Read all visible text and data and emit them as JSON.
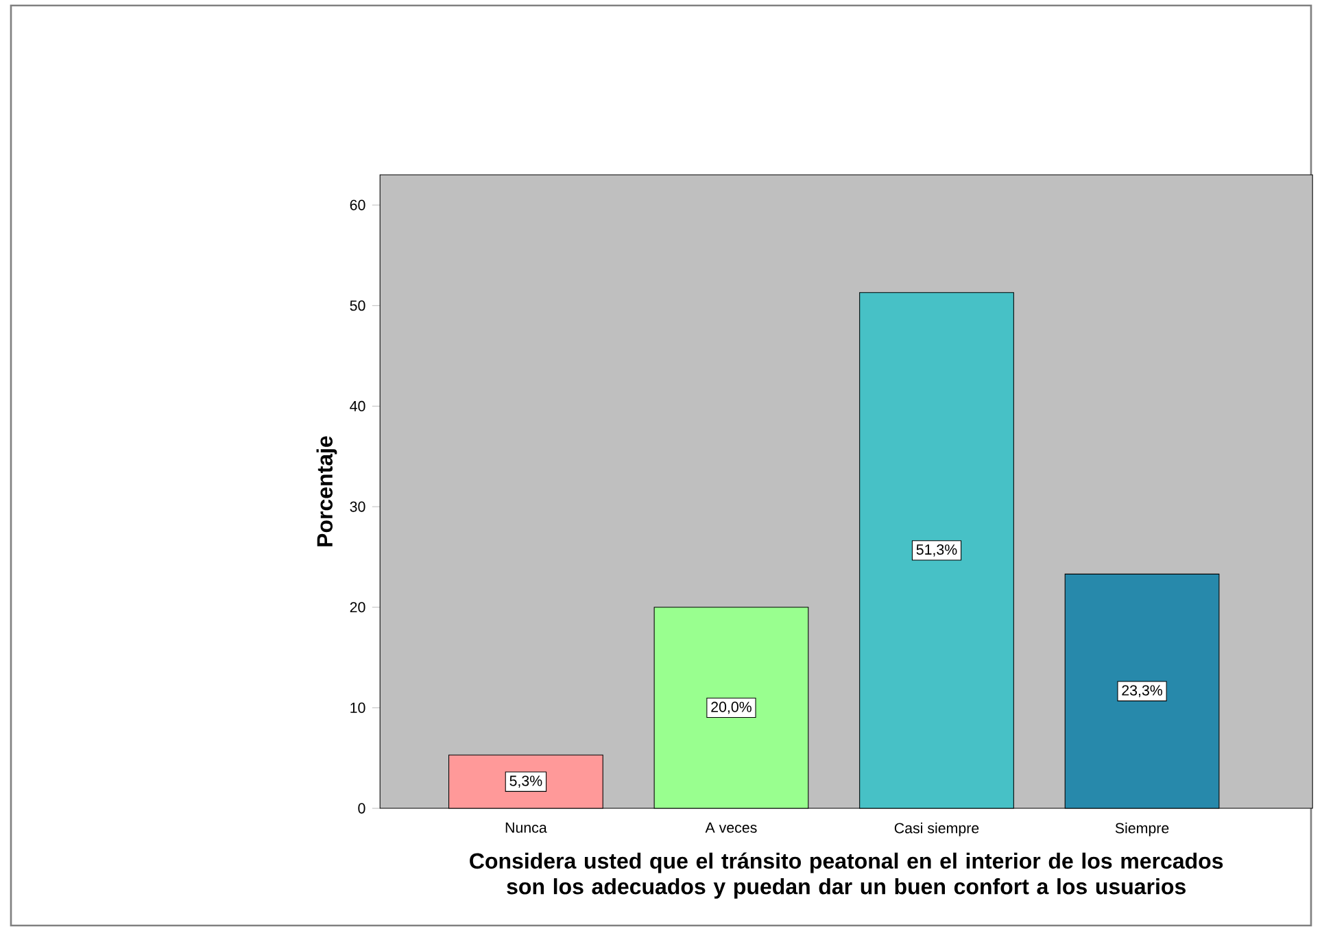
{
  "chart_data": {
    "type": "bar",
    "xlabel": "Considera usted que el tránsito peatonal en el interior de los mercados son los adecuados y puedan dar un buen confort a los usuarios",
    "ylabel": "Porcentaje",
    "categories": [
      "Nunca",
      "A veces",
      "Casi siempre",
      "Siempre"
    ],
    "values": [
      5.3,
      20.0,
      51.3,
      23.3
    ],
    "value_labels": [
      "5,3%",
      "20,0%",
      "51,3%",
      "23,3%"
    ],
    "colors": [
      "#ff9999",
      "#99ff8f",
      "#47c1c6",
      "#2789ab"
    ],
    "ylim": [
      0,
      63
    ],
    "yticks": [
      0,
      10,
      20,
      30,
      40,
      50,
      60
    ]
  }
}
